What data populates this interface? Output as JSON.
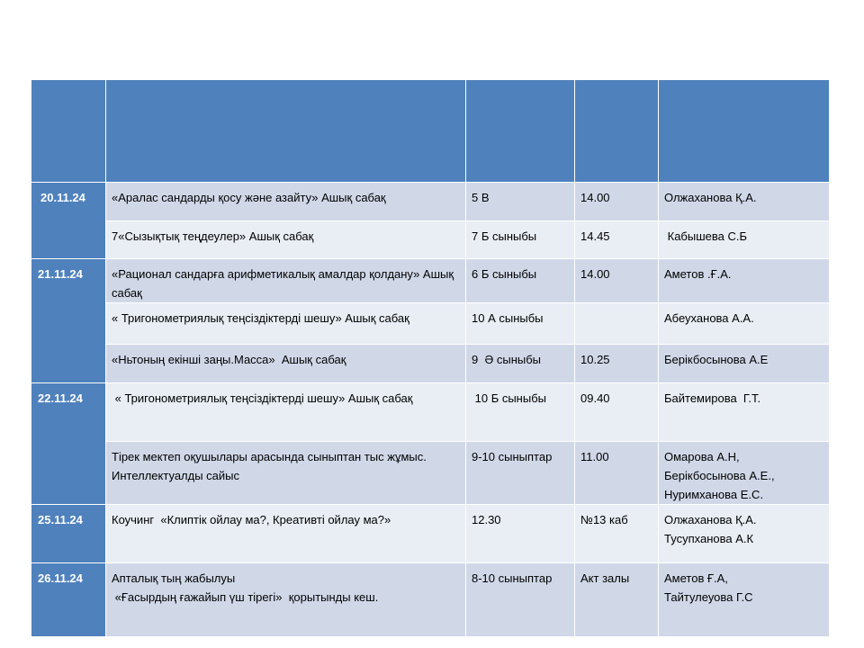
{
  "table": {
    "header_color": "#4f81bd",
    "row_colors": [
      "#d0d8e8",
      "#e9edf4"
    ],
    "header": [
      "",
      "",
      "",
      "",
      ""
    ],
    "rows": [
      {
        "date": "20.11.24",
        "topic": "«Аралас сандарды қосу және азайту» Ашық сабақ",
        "class": "5 В",
        "time": "14.00",
        "teacher": "Олжаханова Қ.А."
      },
      {
        "date": "",
        "topic": "7«Сызықтық теңдеулер» Ашық сабақ",
        "class": "7 Б сыныбы",
        "time": "14.45",
        "teacher": " Кабышева С.Б"
      },
      {
        "date": "21.11.24",
        "topic": "«Рационал сандарға арифметикалық амалдар қолдану» Ашық сабақ",
        "class": "6 Б сыныбы",
        "time": "14.00",
        "teacher": "Аметов .Ғ.А."
      },
      {
        "date": "",
        "topic": "« Тригонометриялық теңсіздіктерді шешу» Ашық сабақ",
        "class": "10 А сыныбы",
        "time": "",
        "teacher": "Абеуханова А.А."
      },
      {
        "date": "",
        "topic": "«Ньтоның екінші заңы.Масса»  Ашық сабақ",
        "class": "9  Ә сыныбы",
        "time": "10.25",
        "teacher": "Берікбосынова А.Е"
      },
      {
        "date": "22.11.24",
        "topic": " « Тригонометриялық теңсіздіктерді шешу» Ашық сабақ",
        "class": " 10 Б сыныбы",
        "time": "09.40",
        "teacher": "Байтемирова  Г.Т."
      },
      {
        "date": "",
        "topic": "Тірек мектеп оқушылары арасында сыныптан тыс жұмыс.  Интеллектуалды сайыс",
        "class": "9-10 сыныптар",
        "time": "11.00",
        "teacher": "Омарова А.Н,\nБерікбосынова А.Е.,\nНуримханова Е.С."
      },
      {
        "date": "25.11.24",
        "topic": "Коучинг  «Клиптік ойлау ма?, Креативті ойлау ма?»",
        "class": "12.30",
        "time": "№13 каб",
        "teacher": "Олжаханова Қ.А.\nТусупханова А.К"
      },
      {
        "date": "26.11.24",
        "topic": "Апталық тың жабылуы\n «Ғасырдың ғажайып үш тірегі»  қорытынды кеш.",
        "class": "8-10 сыныптар",
        "time": "Акт залы",
        "teacher": "Аметов Ғ.А,\nТайтулеуова Г.С"
      }
    ]
  }
}
